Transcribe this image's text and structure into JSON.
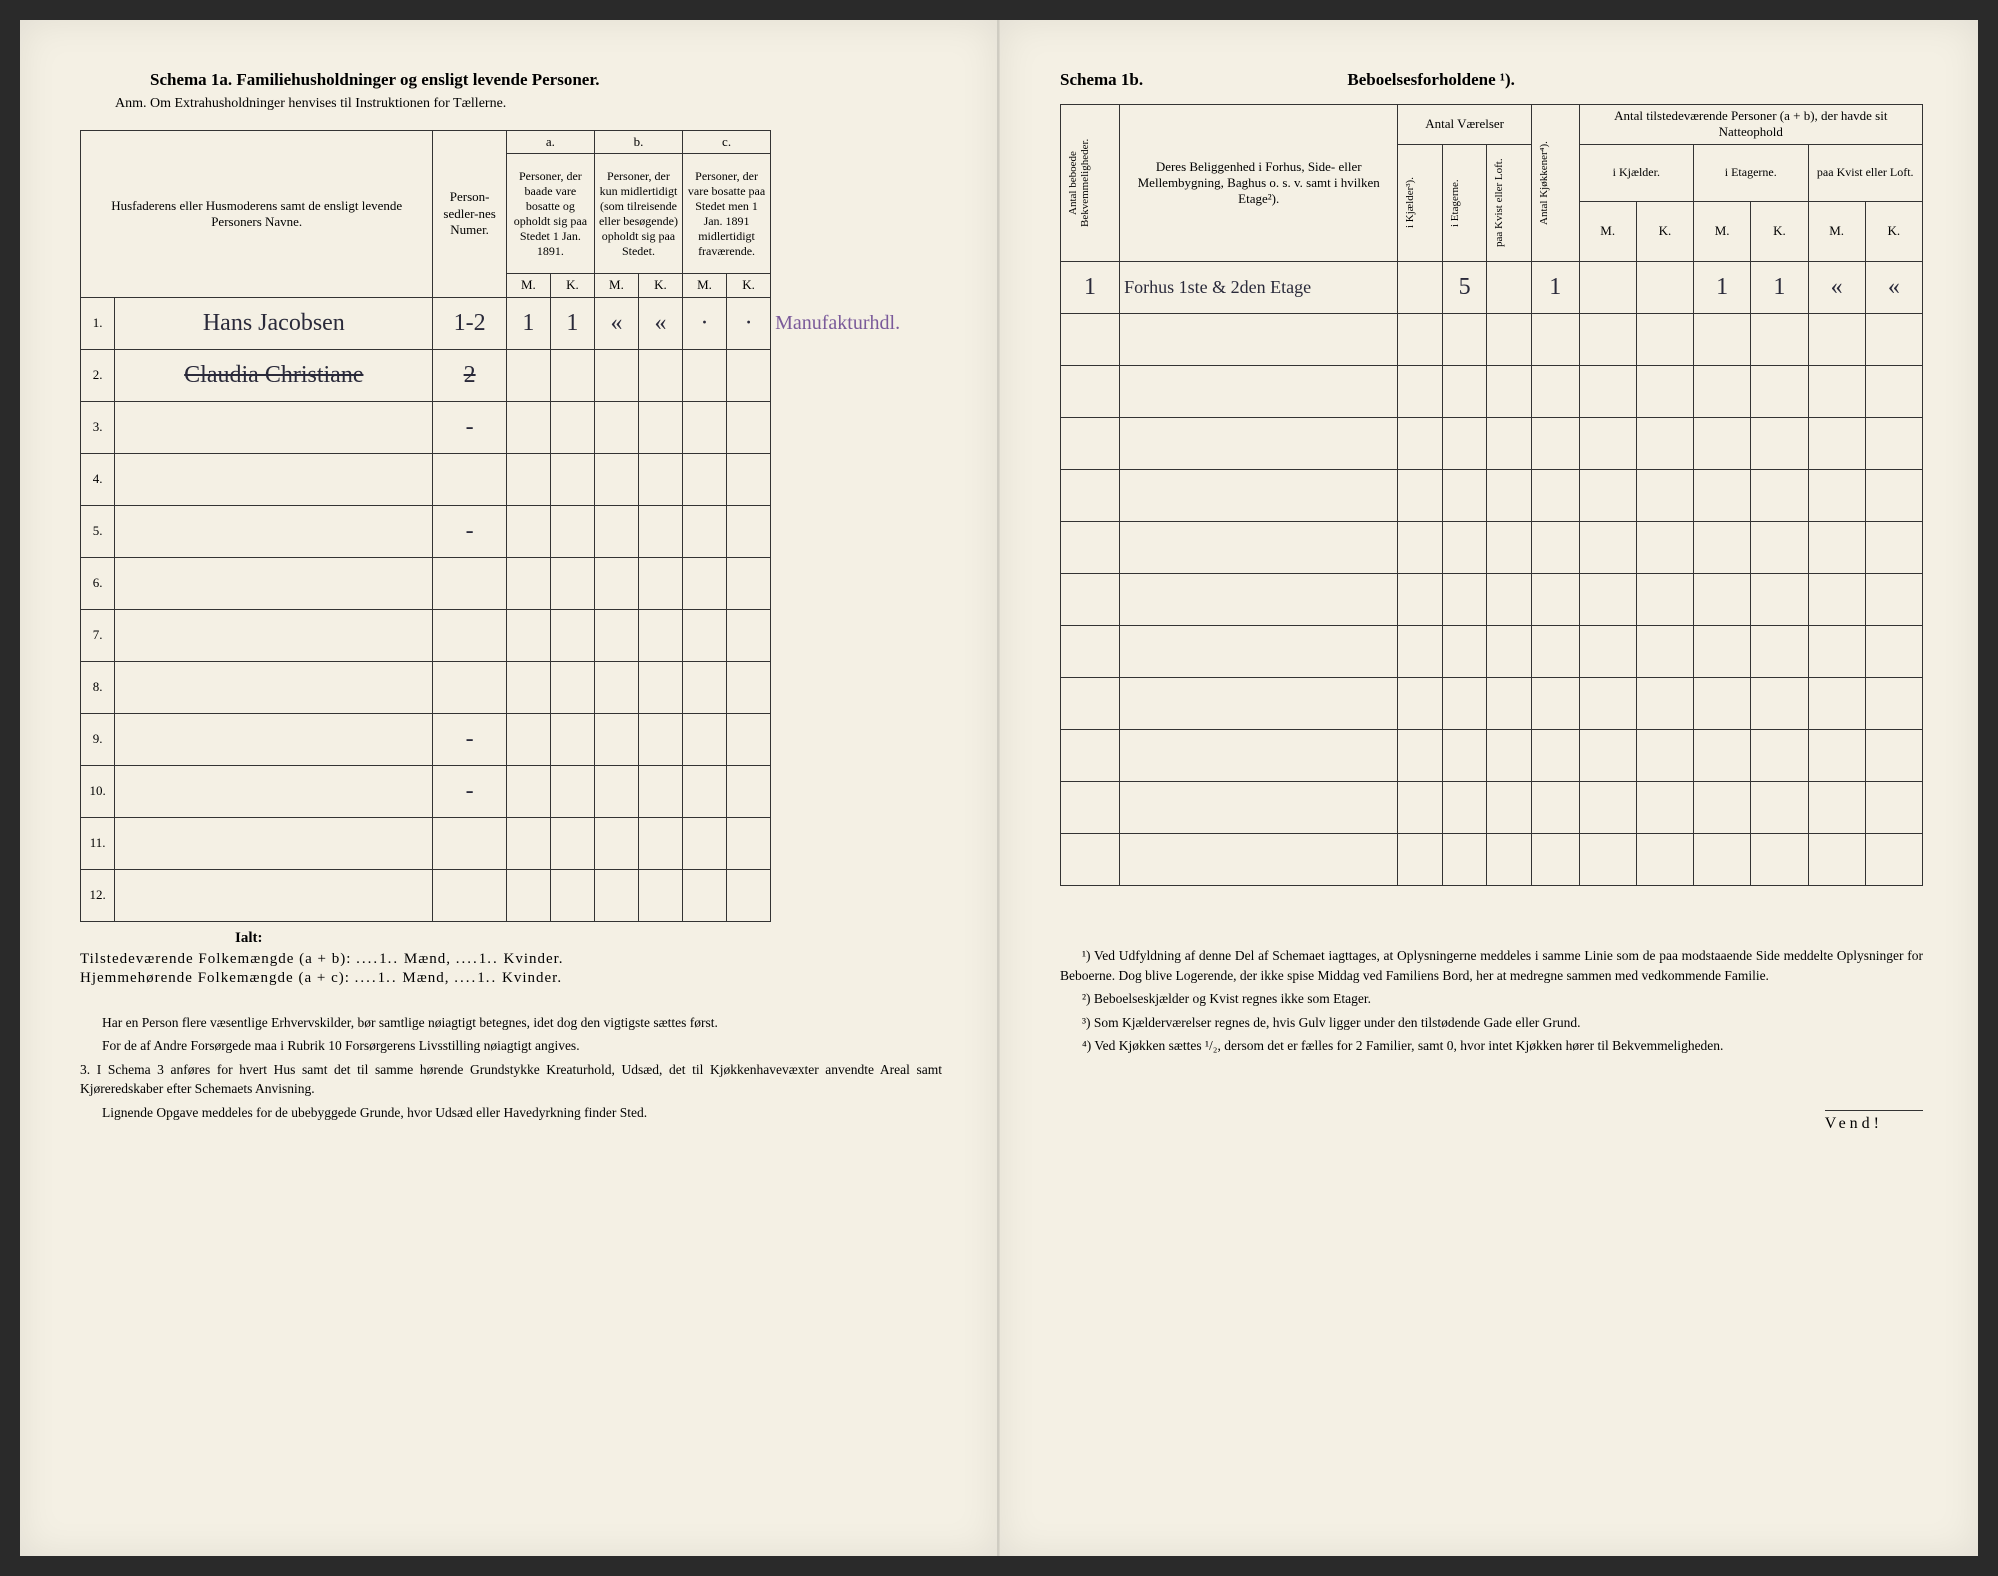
{
  "left": {
    "title": "Schema 1a.   Familiehusholdninger og ensligt levende Personer.",
    "anm": "Anm.  Om Extrahusholdninger henvises til Instruktionen for Tællerne.",
    "headers": {
      "col1": "Husfaderens eller Husmoderens samt de ensligt levende Personers Navne.",
      "col2": "Person-sedler-nes Numer.",
      "a_label": "a.",
      "a": "Personer, der baade vare bosatte og opholdt sig paa Stedet 1 Jan. 1891.",
      "b_label": "b.",
      "b": "Personer, der kun midlertidigt (som tilreisende eller besøgende) opholdt sig paa Stedet.",
      "c_label": "c.",
      "c": "Personer, der vare bosatte paa Stedet men 1 Jan. 1891 midlertidigt fraværende.",
      "m": "M.",
      "k": "K."
    },
    "rows": [
      {
        "n": "1.",
        "name": "Hans Jacobsen",
        "num": "1-2",
        "am": "1",
        "ak": "1",
        "bm": "«",
        "bk": "«",
        "cm": "·",
        "ck": "·",
        "extra": "Manufakturhdl."
      },
      {
        "n": "2.",
        "name": "Claudia Christiane",
        "num": "2",
        "struck": true
      },
      {
        "n": "3.",
        "num": "-"
      },
      {
        "n": "4."
      },
      {
        "n": "5.",
        "num": "-"
      },
      {
        "n": "6."
      },
      {
        "n": "7."
      },
      {
        "n": "8."
      },
      {
        "n": "9.",
        "num": "-"
      },
      {
        "n": "10.",
        "num": "-"
      },
      {
        "n": "11."
      },
      {
        "n": "12."
      }
    ],
    "ialt": "Ialt:",
    "tilstede": "Tilstedeværende Folkemængde (a + b): ",
    "hjemme": "Hjemmehørende Folkemængde (a + c): ",
    "maend": "Mænd,",
    "kvinder": "Kvinder.",
    "val1m": "1",
    "val1k": "1",
    "val2m": "1",
    "val2k": "1",
    "notes": [
      "Har en Person flere væsentlige Erhvervskilder, bør samtlige nøiagtigt betegnes, idet dog den vigtigste sættes først.",
      "For de af Andre Forsørgede maa i Rubrik 10 Forsørgerens Livsstilling nøiagtigt angives.",
      "3. I Schema 3 anføres for hvert Hus samt det til samme hørende Grundstykke Kreaturhold, Udsæd, det til Kjøkkenhavevæxter anvendte Areal samt Kjøreredskaber efter Schemaets Anvisning.",
      "Lignende Opgave meddeles for de ubebyggede Grunde, hvor Udsæd eller Havedyrkning finder Sted."
    ]
  },
  "right": {
    "title_label": "Schema 1b.",
    "title": "Beboelsesforholdene ¹).",
    "headers": {
      "antal_bekv": "Antal beboede Bekvemmeligheder.",
      "beligg": "Deres Beliggenhed i Forhus, Side- eller Mellembygning, Baghus o. s. v. samt i hvilken Etage²).",
      "antal_vaer": "Antal Værelser",
      "kjael": "i Kjælder³).",
      "etag": "i Etagerne.",
      "kvist": "paa Kvist eller Loft.",
      "kjok": "Antal Kjøkkener⁴).",
      "tilstede": "Antal tilstedeværende Personer (a + b), der havde sit Natteophold",
      "i_kjael": "i Kjælder.",
      "i_etag": "i Etagerne.",
      "paa_kvist": "paa Kvist eller Loft.",
      "m": "M.",
      "k": "K."
    },
    "row1": {
      "bekv": "1",
      "beligg": "Forhus 1ste & 2den Etage",
      "etag": "5",
      "kjok": "1",
      "em": "1",
      "ek": "1",
      "km": "«",
      "kk": "«"
    },
    "footnotes": [
      "¹) Ved Udfyldning af denne Del af Schemaet iagttages, at Oplysningerne meddeles i samme Linie som de paa modstaaende Side meddelte Oplysninger for Beboerne. Dog blive Logerende, der ikke spise Middag ved Familiens Bord, her at medregne sammen med vedkommende Familie.",
      "²) Beboelseskjælder og Kvist regnes ikke som Etager.",
      "³) Som Kjælderværelser regnes de, hvis Gulv ligger under den tilstødende Gade eller Grund.",
      "⁴) Ved Kjøkken sættes ¹/₂, dersom det er fælles for 2 Familier, samt 0, hvor intet Kjøkken hører til Bekvemmeligheden."
    ],
    "vend": "Vend!"
  }
}
